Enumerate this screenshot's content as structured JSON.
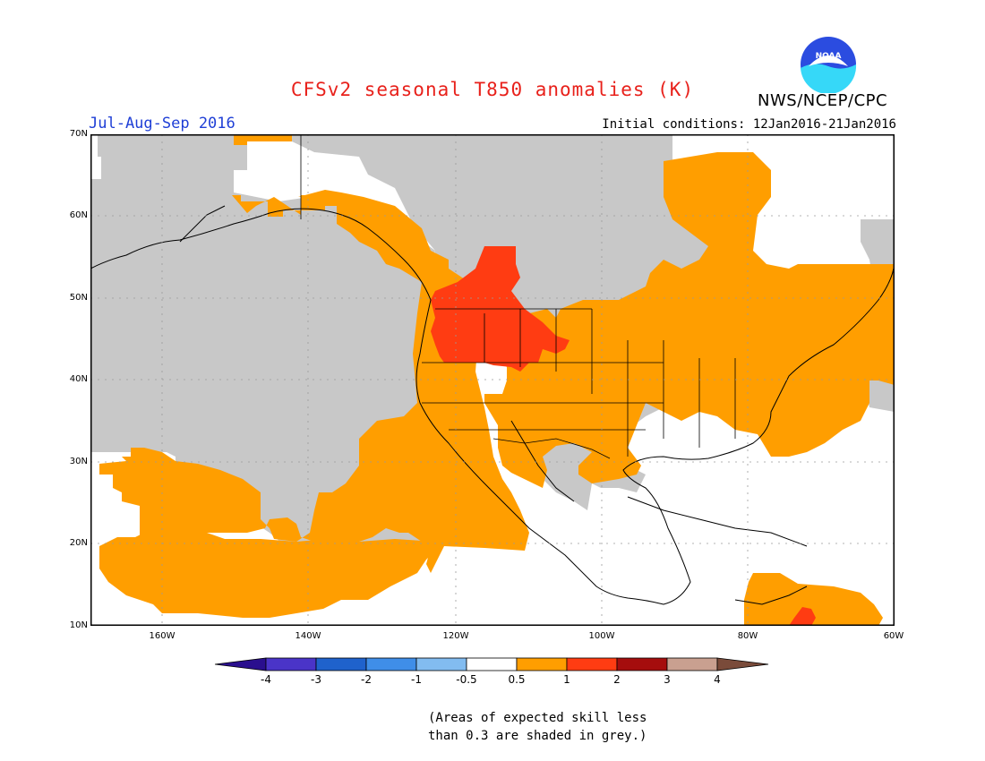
{
  "title": "CFSv2 seasonal T850 anomalies (K)",
  "agency": "NWS/NCEP/CPC",
  "logo_text": "NOAA",
  "period": "Jul-Aug-Sep 2016",
  "initial_conditions": "Initial conditions: 12Jan2016-21Jan2016",
  "map": {
    "lat_labels": [
      "70N",
      "60N",
      "50N",
      "40N",
      "30N",
      "20N",
      "10N"
    ],
    "lon_labels": [
      "160W",
      "140W",
      "120W",
      "100W",
      "80W",
      "60W"
    ]
  },
  "colorbar": {
    "labels": [
      "-4",
      "-3",
      "-2",
      "-1",
      "-0.5",
      "0.5",
      "1",
      "2",
      "3",
      "4"
    ],
    "colors": [
      "#2a0f8e",
      "#4a34c8",
      "#1f62cc",
      "#3f8ee8",
      "#82bcf0",
      "#ffffff",
      "#ff9e00",
      "#ff3c12",
      "#a50d0d",
      "#c9a090",
      "#7a4b3a"
    ]
  },
  "note": [
    "(Areas of expected skill less",
    "than 0.3 are shaded in grey.)"
  ],
  "colors": {
    "grey": "#c8c8c8",
    "orange": "#ff9e00",
    "red": "#ff3c12"
  }
}
